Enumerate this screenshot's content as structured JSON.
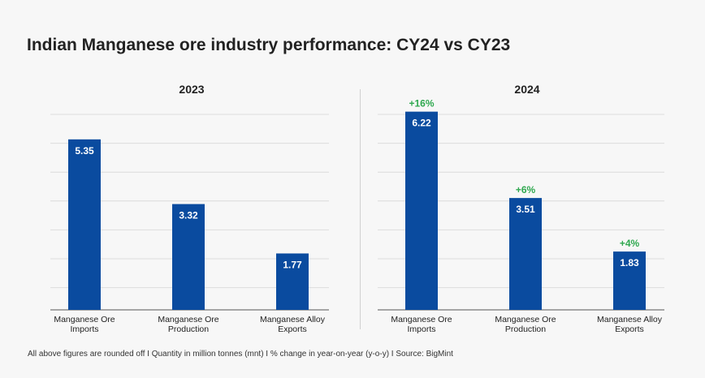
{
  "title": "Indian Manganese ore industry performance: CY24 vs CY23",
  "footnote": "All above figures are rounded off  I  Quantity in million tonnes (mnt)  I  % change in year-on-year (y-o-y)  I  Source: BigMint",
  "colors": {
    "bar": "#0a4b9f",
    "bar_label": "#ffffff",
    "change": "#2fa84f",
    "grid": "#dcdcdc",
    "axis": "#555555",
    "text": "#222222"
  },
  "chart_data": [
    {
      "type": "bar",
      "title": "2023",
      "categories": [
        "Manganese Ore\nImports",
        "Manganese Ore\nProduction",
        "Manganese Alloy\nExports"
      ],
      "values": [
        5.35,
        3.32,
        1.77
      ],
      "data_labels": [
        "5.35",
        "3.32",
        "1.77"
      ],
      "ylim": [
        0,
        7
      ],
      "grid": true
    },
    {
      "type": "bar",
      "title": "2024",
      "categories": [
        "Manganese Ore\nImports",
        "Manganese Ore\nProduction",
        "Manganese Alloy\nExports"
      ],
      "values": [
        6.22,
        3.51,
        1.83
      ],
      "data_labels": [
        "6.22",
        "3.51",
        "1.83"
      ],
      "annotations": [
        "+16%",
        "+6%",
        "+4%"
      ],
      "ylim": [
        0,
        7
      ],
      "grid": true
    }
  ]
}
